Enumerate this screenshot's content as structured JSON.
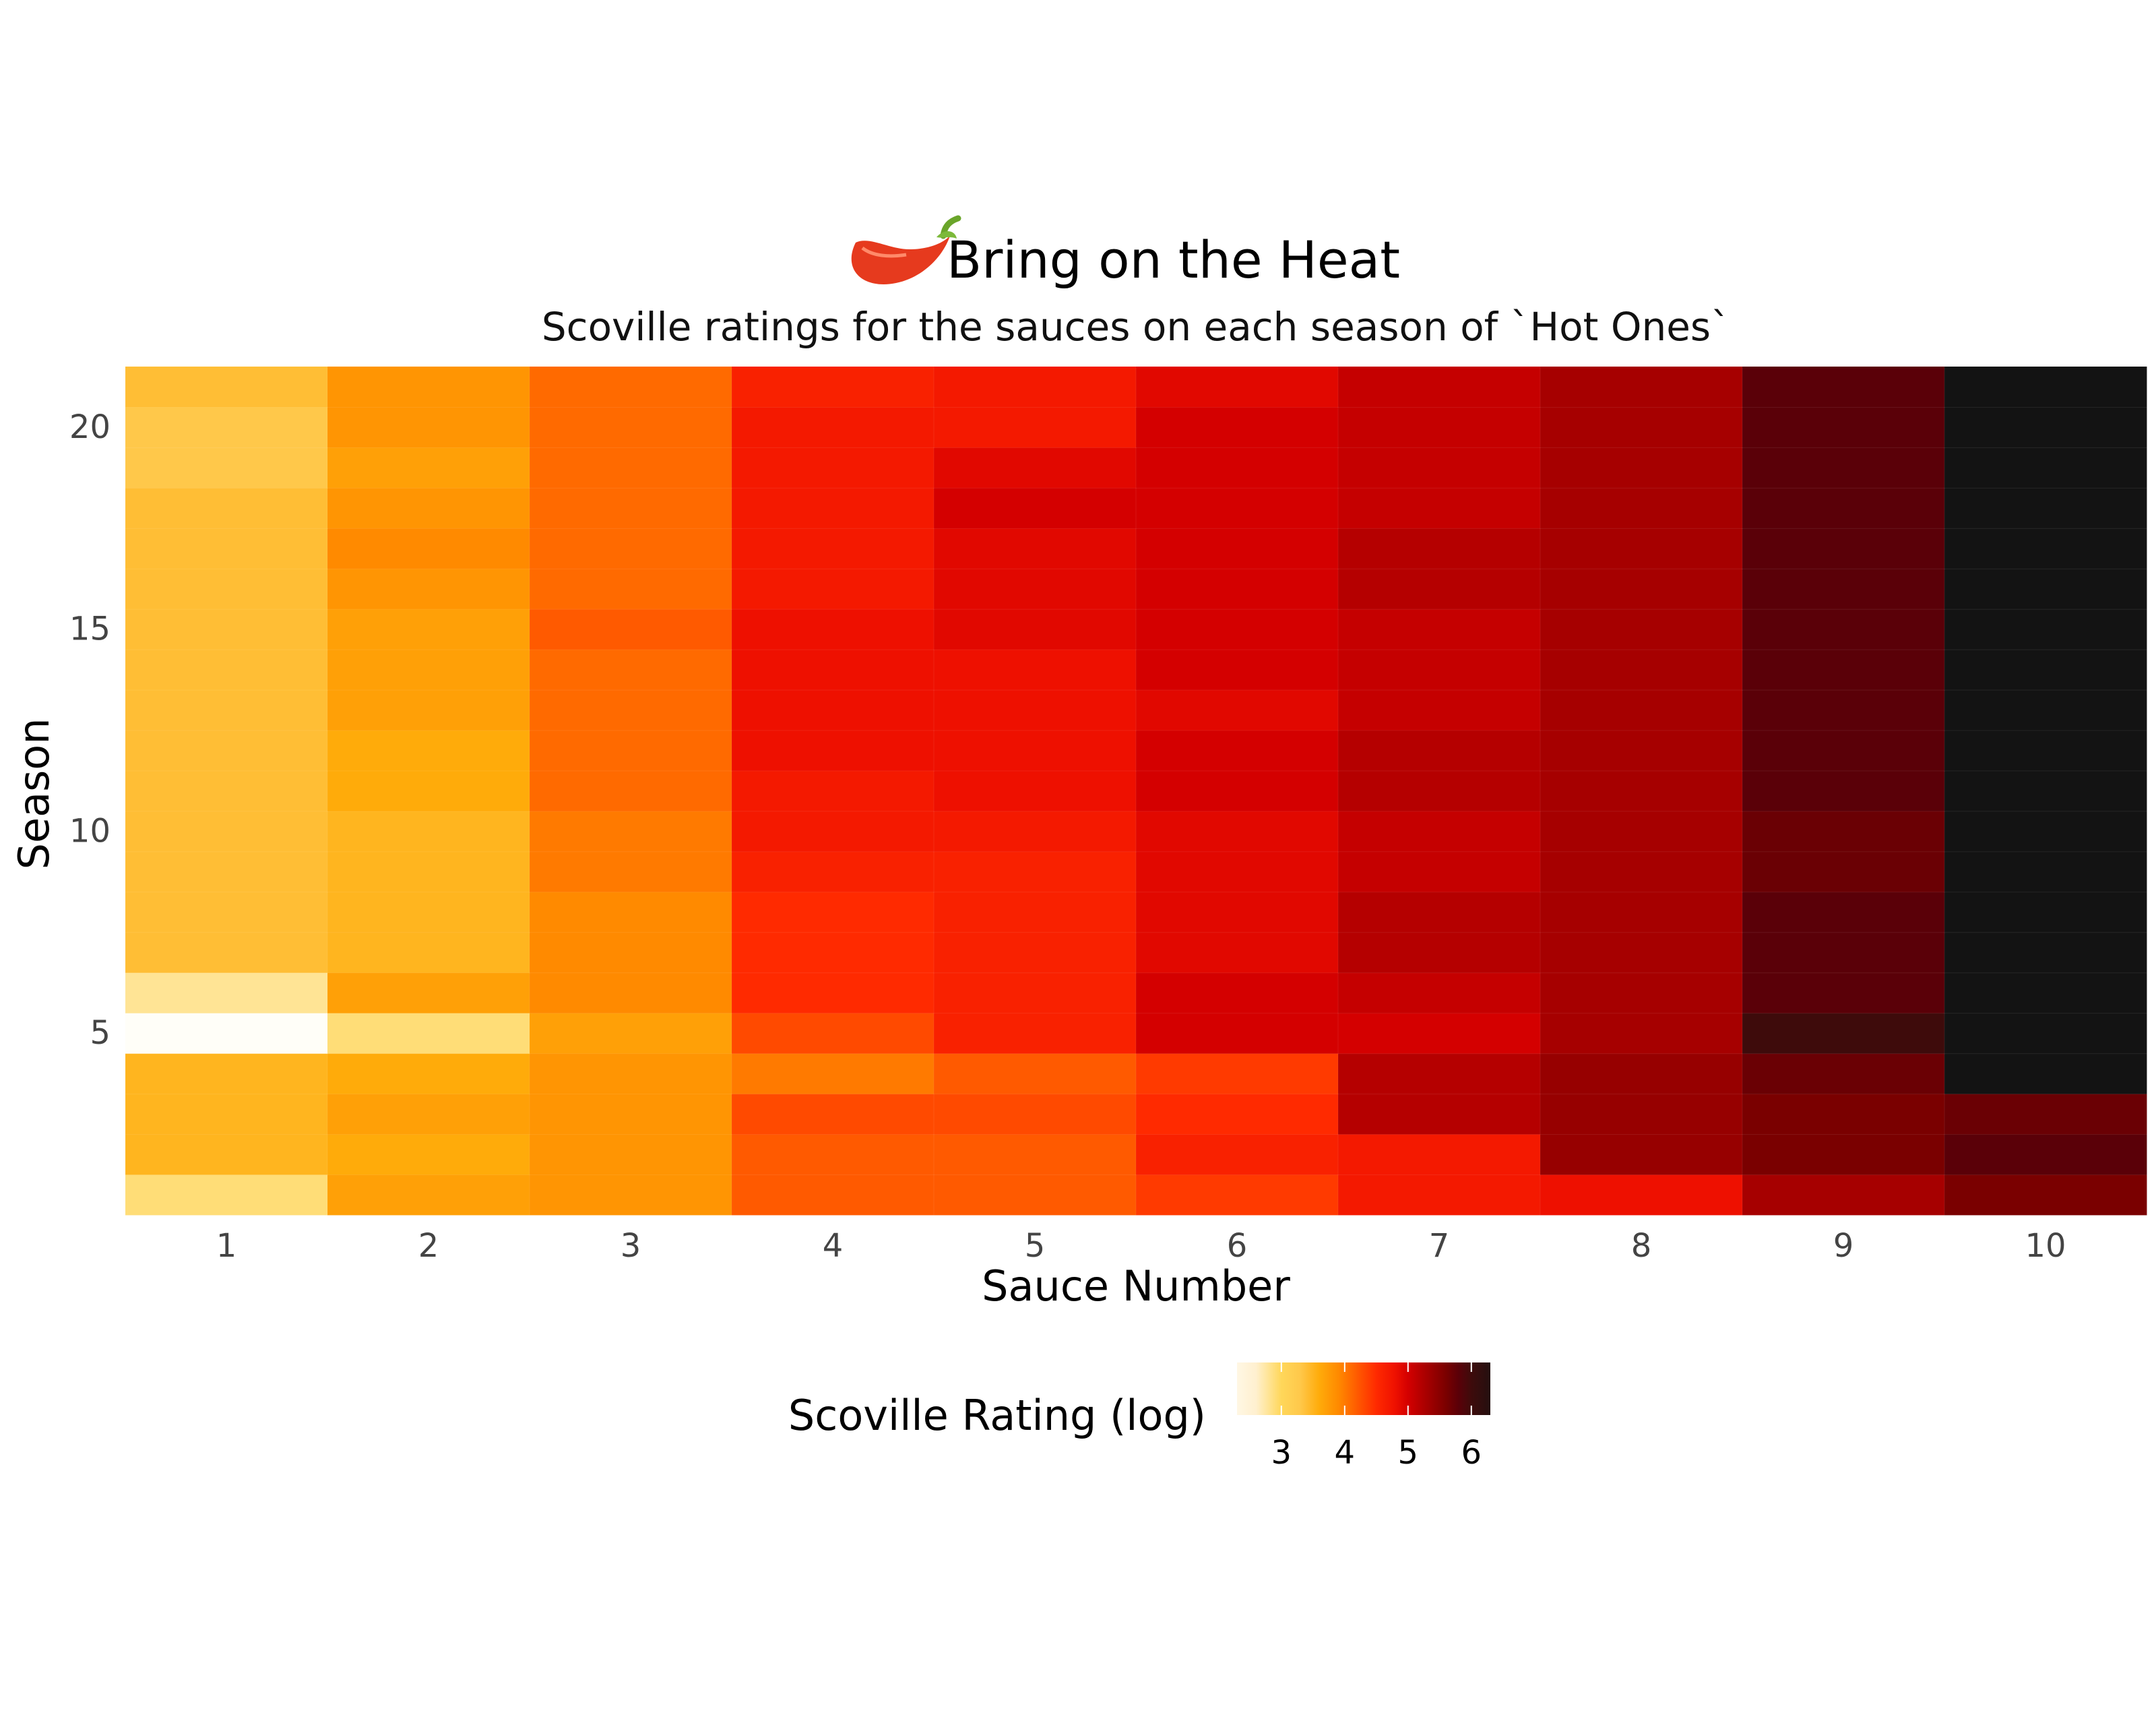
{
  "chart_data": {
    "type": "heatmap",
    "title": "Bring on the Heat",
    "title_icon": "chili-pepper-icon",
    "subtitle": "Scoville ratings for the sauces on each season of `Hot Ones`",
    "xlabel": "Sauce Number",
    "ylabel": "Season",
    "x_categories": [
      1,
      2,
      3,
      4,
      5,
      6,
      7,
      8,
      9,
      10
    ],
    "y_categories": [
      1,
      2,
      3,
      4,
      5,
      6,
      7,
      8,
      9,
      10,
      11,
      12,
      13,
      14,
      15,
      16,
      17,
      18,
      19,
      20,
      21
    ],
    "x_ticks": [
      "1",
      "2",
      "3",
      "4",
      "5",
      "6",
      "7",
      "8",
      "9",
      "10"
    ],
    "y_ticks": [
      "5",
      "10",
      "15",
      "20"
    ],
    "y_tick_values": [
      5,
      10,
      15,
      20
    ],
    "values_note_unit": "log10 Scoville",
    "values": [
      [
        2.9,
        3.7,
        3.8,
        4.2,
        4.2,
        4.4,
        4.7,
        4.8,
        5.3,
        5.6
      ],
      [
        3.5,
        3.6,
        3.8,
        4.2,
        4.2,
        4.6,
        4.7,
        5.4,
        5.6,
        5.8
      ],
      [
        3.5,
        3.7,
        3.8,
        4.3,
        4.3,
        4.5,
        5.2,
        5.4,
        5.6,
        5.7
      ],
      [
        3.5,
        3.6,
        3.8,
        4.0,
        4.2,
        4.4,
        5.2,
        5.4,
        5.7,
        6.5
      ],
      [
        2.0,
        2.9,
        3.7,
        4.3,
        4.6,
        5.0,
        5.0,
        5.3,
        6.0,
        6.5
      ],
      [
        2.8,
        3.7,
        3.9,
        4.5,
        4.6,
        5.0,
        5.1,
        5.3,
        5.8,
        6.5
      ],
      [
        3.4,
        3.5,
        3.9,
        4.5,
        4.6,
        4.9,
        5.2,
        5.3,
        5.8,
        6.5
      ],
      [
        3.4,
        3.5,
        3.9,
        4.5,
        4.6,
        4.9,
        5.2,
        5.3,
        5.8,
        6.5
      ],
      [
        3.4,
        3.5,
        4.0,
        4.6,
        4.6,
        4.9,
        5.1,
        5.3,
        5.7,
        6.5
      ],
      [
        3.4,
        3.5,
        4.0,
        4.7,
        4.7,
        4.9,
        5.1,
        5.3,
        5.7,
        6.5
      ],
      [
        3.4,
        3.6,
        4.1,
        4.7,
        4.8,
        5.0,
        5.2,
        5.3,
        5.8,
        6.5
      ],
      [
        3.4,
        3.6,
        4.1,
        4.8,
        4.8,
        5.0,
        5.2,
        5.3,
        5.8,
        6.5
      ],
      [
        3.4,
        3.7,
        4.1,
        4.8,
        4.8,
        4.9,
        5.1,
        5.3,
        5.8,
        6.5
      ],
      [
        3.4,
        3.7,
        4.1,
        4.8,
        4.8,
        5.0,
        5.1,
        5.3,
        5.8,
        6.5
      ],
      [
        3.4,
        3.7,
        4.2,
        4.8,
        4.9,
        5.0,
        5.1,
        5.3,
        5.8,
        6.5
      ],
      [
        3.4,
        3.8,
        4.1,
        4.7,
        4.9,
        5.0,
        5.2,
        5.3,
        5.8,
        6.5
      ],
      [
        3.4,
        3.9,
        4.1,
        4.7,
        4.9,
        5.0,
        5.2,
        5.3,
        5.8,
        6.5
      ],
      [
        3.4,
        3.8,
        4.1,
        4.7,
        5.0,
        5.0,
        5.1,
        5.3,
        5.8,
        6.5
      ],
      [
        3.3,
        3.7,
        4.1,
        4.7,
        4.9,
        5.0,
        5.1,
        5.3,
        5.8,
        6.5
      ],
      [
        3.3,
        3.8,
        4.1,
        4.7,
        4.7,
        5.0,
        5.1,
        5.3,
        5.8,
        6.5
      ],
      [
        3.4,
        3.8,
        4.1,
        4.6,
        4.7,
        4.9,
        5.1,
        5.3,
        5.8,
        6.5
      ]
    ],
    "color_scale": {
      "title": "Scoville Rating (log)",
      "domain": [
        2.3,
        6.3
      ],
      "ticks": [
        "3",
        "4",
        "5",
        "6"
      ],
      "tick_values": [
        3,
        4,
        5,
        6
      ],
      "stops": [
        {
          "v": 2.0,
          "color": "#fffef8"
        },
        {
          "v": 2.6,
          "color": "#fff0cf"
        },
        {
          "v": 3.0,
          "color": "#ffd75a"
        },
        {
          "v": 3.3,
          "color": "#ffc84a"
        },
        {
          "v": 3.6,
          "color": "#ffab0a"
        },
        {
          "v": 3.9,
          "color": "#ff8a00"
        },
        {
          "v": 4.2,
          "color": "#ff5a00"
        },
        {
          "v": 4.5,
          "color": "#ff2a00"
        },
        {
          "v": 4.8,
          "color": "#ee1000"
        },
        {
          "v": 5.0,
          "color": "#d40000"
        },
        {
          "v": 5.3,
          "color": "#a60000"
        },
        {
          "v": 5.6,
          "color": "#7a0000"
        },
        {
          "v": 5.8,
          "color": "#5a0008"
        },
        {
          "v": 6.0,
          "color": "#3e0b0b"
        },
        {
          "v": 6.5,
          "color": "#131313"
        }
      ]
    },
    "grid": false,
    "legend_position": "bottom"
  }
}
